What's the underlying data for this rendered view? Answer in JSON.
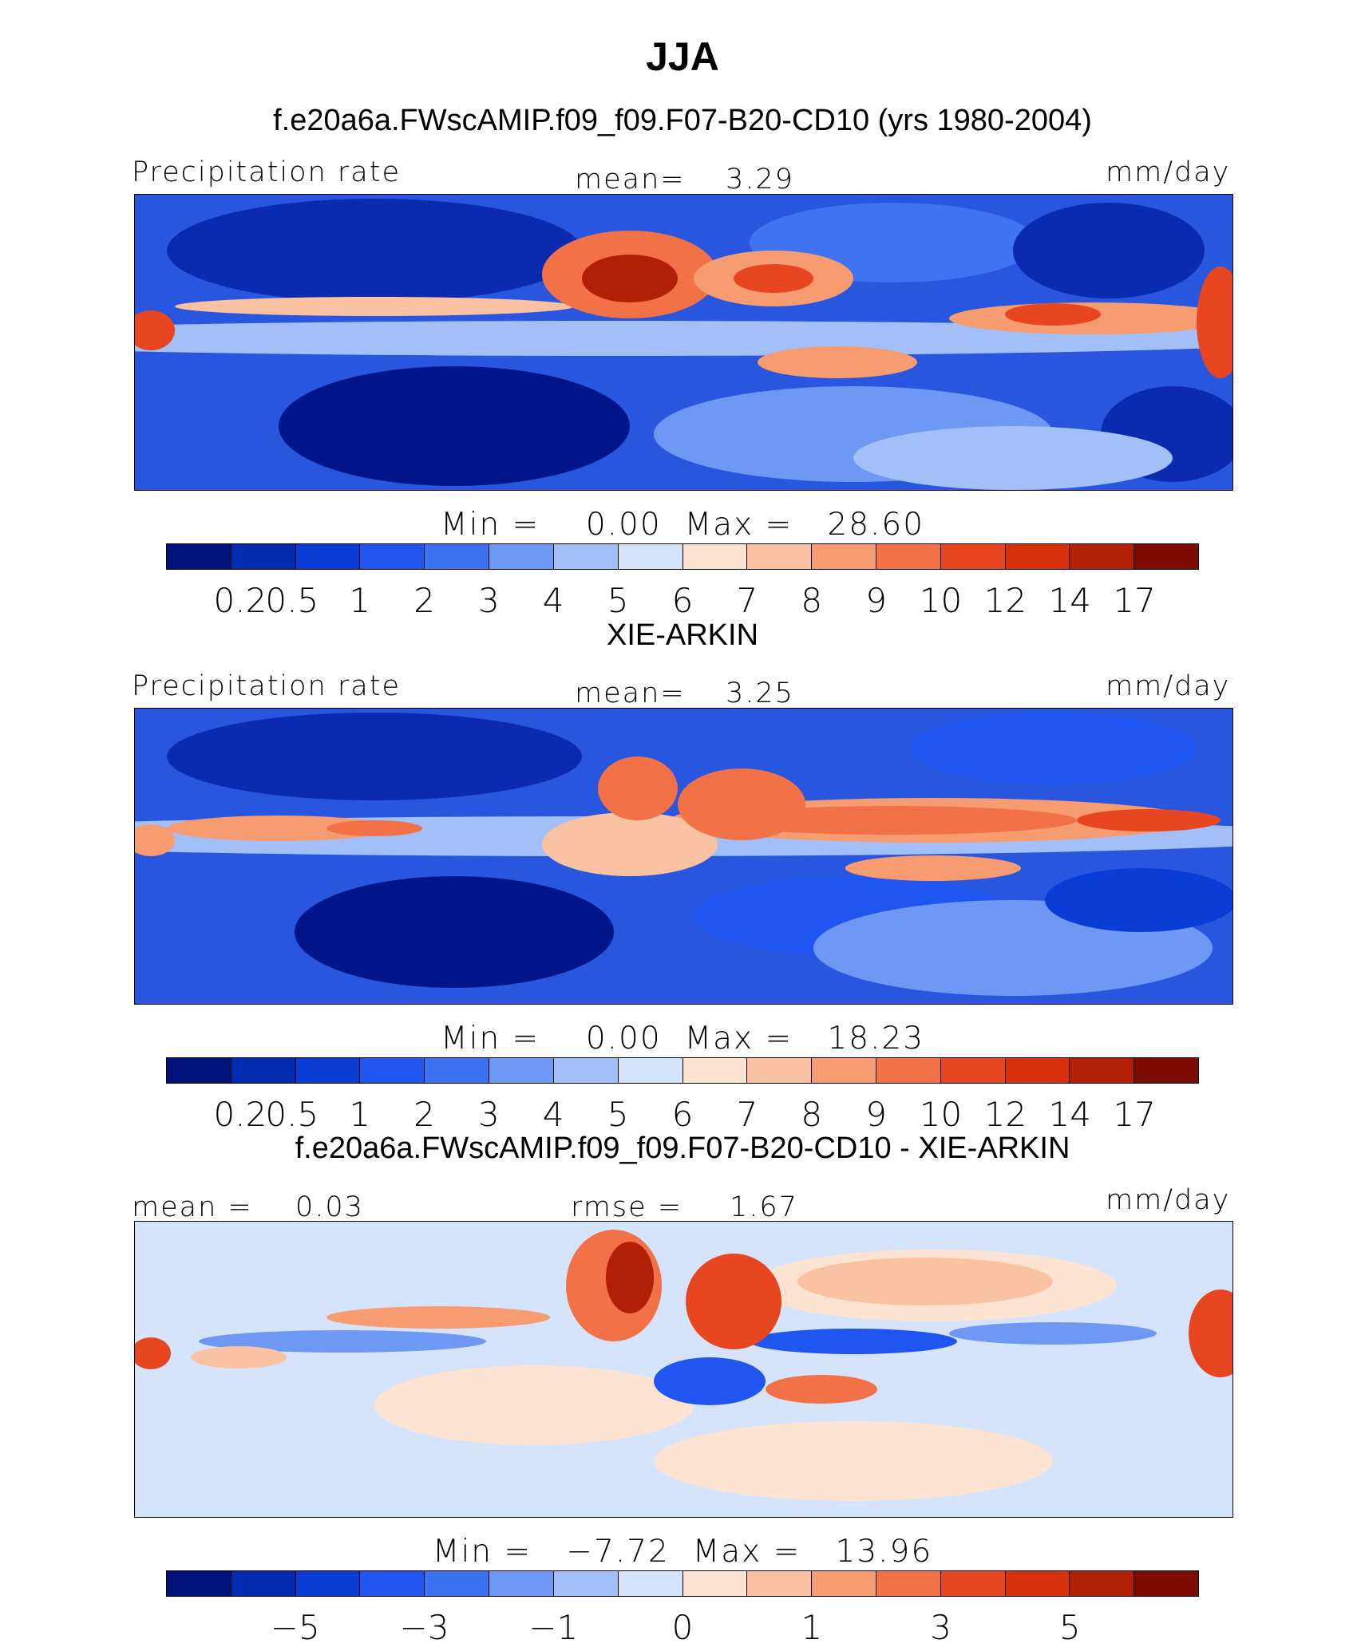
{
  "chart_data": [
    {
      "type": "heatmap",
      "panel_title": "f.e20a6a.FWscAMIP.f09_f09.F07-B20-CD10 (yrs 1980-2004)",
      "variable": "Precipitation rate",
      "mean_label": "mean=",
      "mean": "3.29",
      "units": "mm/day",
      "min_label": "Min =",
      "min": "0.00",
      "max_label": "Max =",
      "max": "28.60",
      "colorbar_ticks": [
        "0.2",
        "0.5",
        "1",
        "2",
        "3",
        "4",
        "5",
        "6",
        "7",
        "8",
        "9",
        "10",
        "12",
        "14",
        "17"
      ],
      "colorbar_colors": [
        "#00137d",
        "#002bb0",
        "#0a3cd6",
        "#1f55f0",
        "#3d72f2",
        "#6d98f4",
        "#a3bff7",
        "#d6e4fb",
        "#fde3d2",
        "#fbc1a3",
        "#f79b71",
        "#f27147",
        "#e84621",
        "#d8300d",
        "#b11f05",
        "#7d0b02"
      ]
    },
    {
      "type": "heatmap",
      "panel_title": "XIE-ARKIN",
      "variable": "Precipitation rate",
      "mean_label": "mean=",
      "mean": "3.25",
      "units": "mm/day",
      "min_label": "Min =",
      "min": "0.00",
      "max_label": "Max =",
      "max": "18.23",
      "colorbar_ticks": [
        "0.2",
        "0.5",
        "1",
        "2",
        "3",
        "4",
        "5",
        "6",
        "7",
        "8",
        "9",
        "10",
        "12",
        "14",
        "17"
      ],
      "colorbar_colors": [
        "#00137d",
        "#002bb0",
        "#0a3cd6",
        "#1f55f0",
        "#3d72f2",
        "#6d98f4",
        "#a3bff7",
        "#d6e4fb",
        "#fde3d2",
        "#fbc1a3",
        "#f79b71",
        "#f27147",
        "#e84621",
        "#d8300d",
        "#b11f05",
        "#7d0b02"
      ]
    },
    {
      "type": "heatmap",
      "panel_title": "f.e20a6a.FWscAMIP.f09_f09.F07-B20-CD10 - XIE-ARKIN",
      "mean_label": "mean =",
      "mean": "0.03",
      "rmse_label": "rmse =",
      "rmse": "1.67",
      "units": "mm/day",
      "min_label": "Min =",
      "min": "−7.72",
      "max_label": "Max =",
      "max": "13.96",
      "colorbar_ticks": [
        "−5",
        "−3",
        "−1",
        "0",
        "1",
        "3",
        "5"
      ],
      "colorbar_colors": [
        "#00137d",
        "#002bb0",
        "#0a3cd6",
        "#1f55f0",
        "#3d72f2",
        "#6d98f4",
        "#a3bff7",
        "#d6e4fb",
        "#fde3d2",
        "#fbc1a3",
        "#f79b71",
        "#f27147",
        "#e84621",
        "#d8300d",
        "#b11f05",
        "#7d0b02"
      ]
    }
  ],
  "figure_title": "JJA"
}
